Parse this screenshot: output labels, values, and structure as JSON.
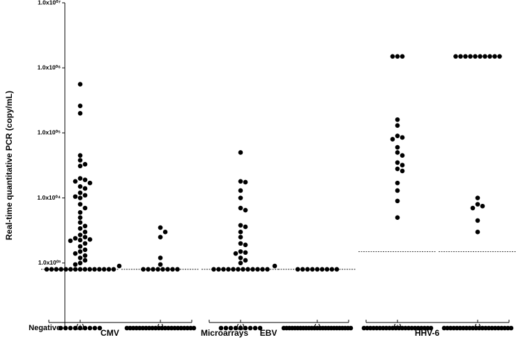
{
  "chart_data": {
    "type": "strip",
    "ylabel": "Real-time quantitative PCR (copy/mL)",
    "xlabel": "Microarrays",
    "log_scale": true,
    "color": "#000000",
    "ylim": [
      100,
      10000000
    ],
    "yticks": [
      {
        "value": 100,
        "label": "Negative"
      },
      {
        "value": 1000,
        "label": "1.0x10⁰³"
      },
      {
        "value": 10000,
        "label": "1.0x10⁰⁴"
      },
      {
        "value": 100000,
        "label": "1.0x10⁰⁵"
      },
      {
        "value": 1000000,
        "label": "1.0x10⁰⁶"
      },
      {
        "value": 10000000,
        "label": "1.0x10⁰⁷"
      }
    ],
    "groups": [
      {
        "name": "CMV",
        "categories": [
          "(+)",
          "(-)"
        ],
        "thresholds": [
          800,
          800
        ],
        "values": [
          [
            560000,
            260000,
            200000,
            45000,
            38000,
            33000,
            31000,
            20000,
            19000,
            18000,
            17000,
            15000,
            14000,
            12000,
            11000,
            10500,
            10000,
            8000,
            7000,
            6000,
            5000,
            4200,
            3700,
            3400,
            3000,
            2700,
            2500,
            2400,
            2300,
            2250,
            2200,
            2000,
            1800,
            1600,
            1500,
            1400,
            1300,
            1200,
            1100,
            1000,
            950,
            900,
            800,
            800,
            800,
            800,
            800,
            800,
            800,
            800,
            800,
            800,
            800,
            800,
            800,
            800,
            800,
            100,
            100,
            100,
            100,
            100,
            100,
            100,
            100,
            100
          ],
          [
            3500,
            3000,
            2500,
            1200,
            950,
            800,
            800,
            800,
            800,
            800,
            800,
            800,
            800,
            100,
            100,
            100,
            100,
            100,
            100,
            100,
            100,
            100,
            100,
            100,
            100,
            100,
            100,
            100,
            100,
            100,
            100,
            100,
            100,
            100,
            100
          ]
        ]
      },
      {
        "name": "EBV",
        "categories": [
          "(+)",
          "(-)"
        ],
        "thresholds": [
          800,
          800
        ],
        "values": [
          [
            50000,
            18000,
            17500,
            13000,
            10000,
            7000,
            6500,
            3800,
            3600,
            3000,
            2500,
            2000,
            1900,
            1500,
            1450,
            1400,
            1200,
            1100,
            1000,
            900,
            800,
            800,
            800,
            800,
            800,
            800,
            800,
            800,
            800,
            800,
            800,
            800,
            100,
            100,
            100,
            100,
            100,
            100,
            100,
            100,
            100
          ],
          [
            800,
            800,
            800,
            800,
            800,
            800,
            800,
            800,
            800,
            100,
            100,
            100,
            100,
            100,
            100,
            100,
            100,
            100,
            100,
            100,
            100,
            100,
            100,
            100,
            100,
            100,
            100,
            100,
            100,
            100,
            100,
            100,
            100,
            100
          ]
        ]
      },
      {
        "name": "HHV-6",
        "categories": [
          "(+)",
          "(-)"
        ],
        "thresholds": [
          1500,
          1500
        ],
        "values": [
          [
            1500000,
            1500000,
            1500000,
            160000,
            130000,
            90000,
            85000,
            80000,
            60000,
            50000,
            45000,
            35000,
            32000,
            28000,
            26000,
            17000,
            13000,
            9000,
            5000,
            100,
            100,
            100,
            100,
            100,
            100,
            100,
            100,
            100,
            100,
            100,
            100,
            100,
            100,
            100,
            100,
            100,
            100,
            100,
            100,
            100,
            100
          ],
          [
            1500000,
            1500000,
            1500000,
            1500000,
            1500000,
            1500000,
            1500000,
            1500000,
            1500000,
            1500000,
            10000,
            8000,
            7500,
            7000,
            4500,
            3000,
            100,
            100,
            100,
            100,
            100,
            100,
            100,
            100,
            100,
            100,
            100,
            100,
            100,
            100,
            100,
            100,
            100,
            100,
            100,
            100,
            100,
            100
          ]
        ]
      }
    ]
  }
}
